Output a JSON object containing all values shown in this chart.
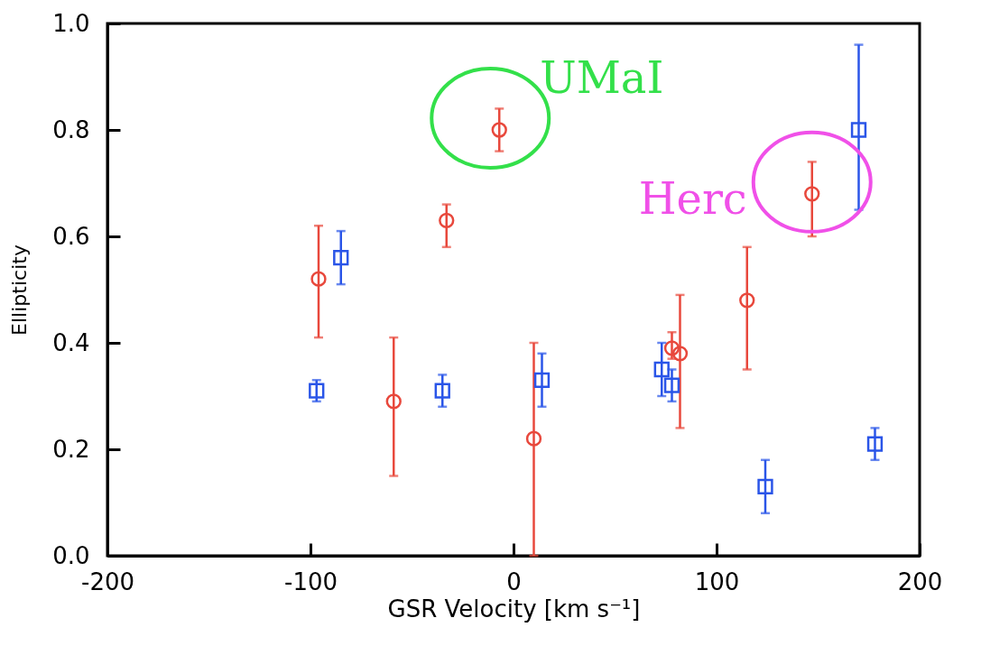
{
  "chart_data": {
    "type": "scatter",
    "xlabel": "GSR Velocity [km s⁻¹]",
    "ylabel": "Ellipticity",
    "xlim": [
      -200,
      200
    ],
    "xticks": [
      -200,
      -100,
      0,
      100,
      200
    ],
    "ylim": [
      0,
      1
    ],
    "yticks": [
      {
        "value": 0,
        "label": "0.0"
      },
      0.2,
      0.4,
      0.6,
      0.8,
      {
        "value": 1,
        "label": "1.0"
      }
    ],
    "grid": false,
    "series": [
      {
        "color": "#e8483c",
        "marker": "circle",
        "x": [
          -96,
          -59,
          -33,
          -7,
          10,
          78,
          82,
          115,
          147
        ],
        "values": [
          0.52,
          0.29,
          0.63,
          0.8,
          0.22,
          0.39,
          0.38,
          0.48,
          0.68
        ],
        "errors": [
          [
            0.41,
            0.62
          ],
          [
            0.15,
            0.41
          ],
          [
            0.58,
            0.66
          ],
          [
            0.76,
            0.84
          ],
          [
            0.0,
            0.4
          ],
          [
            0.37,
            0.42
          ],
          [
            0.24,
            0.49
          ],
          [
            0.35,
            0.58
          ],
          [
            0.6,
            0.74
          ]
        ]
      },
      {
        "color": "#2a55e8",
        "marker": "square",
        "x": [
          -97,
          -85,
          -35,
          14,
          73,
          78,
          124,
          170,
          178
        ],
        "values": [
          0.31,
          0.56,
          0.31,
          0.33,
          0.35,
          0.32,
          0.13,
          0.8,
          0.21
        ],
        "errors": [
          [
            0.29,
            0.33
          ],
          [
            0.51,
            0.61
          ],
          [
            0.28,
            0.34
          ],
          [
            0.28,
            0.38
          ],
          [
            0.3,
            0.4
          ],
          [
            0.29,
            0.35
          ],
          [
            0.08,
            0.18
          ],
          [
            0.65,
            0.96
          ],
          [
            0.18,
            0.24
          ]
        ]
      }
    ],
    "annotations": [
      {
        "text": "UMaI",
        "x": -7,
        "y": 0.8
      },
      {
        "text": "Herc",
        "x": 147,
        "y": 0.68
      }
    ]
  }
}
